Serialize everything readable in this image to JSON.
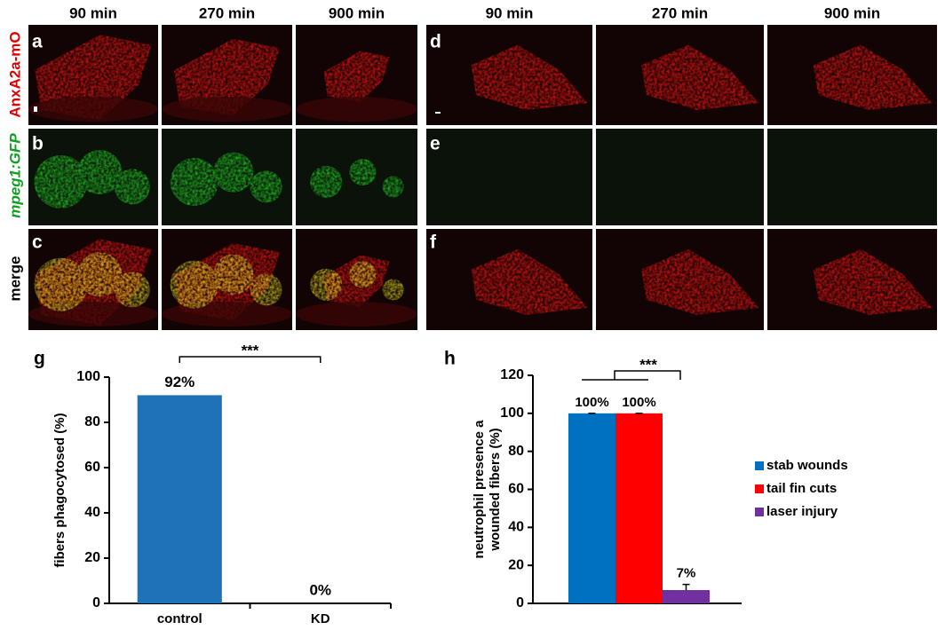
{
  "column_headers": [
    "90 min",
    "270 min",
    "900 min",
    "90 min",
    "270 min",
    "900 min"
  ],
  "row_labels": [
    "AnxA2a-mO",
    "mpeg1:GFP",
    "merge"
  ],
  "panel_letters": [
    "a",
    "b",
    "c",
    "d",
    "e",
    "f"
  ],
  "chart_data": [
    {
      "type": "bar",
      "letter": "g",
      "ylabel": "fibers phagocytosed (%)",
      "categories": [
        "control",
        "KD"
      ],
      "values": [
        92,
        0
      ],
      "value_labels": [
        "92%",
        "0%"
      ],
      "color": "#1f72b8",
      "ylim": [
        0,
        100
      ],
      "yticks": [
        0,
        20,
        40,
        60,
        80,
        100
      ],
      "annotation": "***"
    },
    {
      "type": "grouped_bar",
      "letter": "h",
      "ylabel": [
        "neutrophil presence a",
        "wounded fibers (%)"
      ],
      "series": [
        {
          "name": "stab wounds",
          "color": "#0070c0",
          "values": [
            100
          ],
          "value_labels": [
            "100%"
          ],
          "errors": [
            0
          ]
        },
        {
          "name": "tail fin cuts",
          "color": "#ff0000",
          "values": [
            100
          ],
          "value_labels": [
            "100%"
          ],
          "errors": [
            0
          ]
        },
        {
          "name": "laser injury",
          "color": "#7030a0",
          "values": [
            7
          ],
          "value_labels": [
            "7%"
          ],
          "errors": [
            3
          ]
        }
      ],
      "ylim": [
        0,
        120
      ],
      "yticks": [
        0,
        20,
        40,
        60,
        80,
        100,
        120
      ],
      "annotation": "***",
      "legend": "right"
    }
  ]
}
